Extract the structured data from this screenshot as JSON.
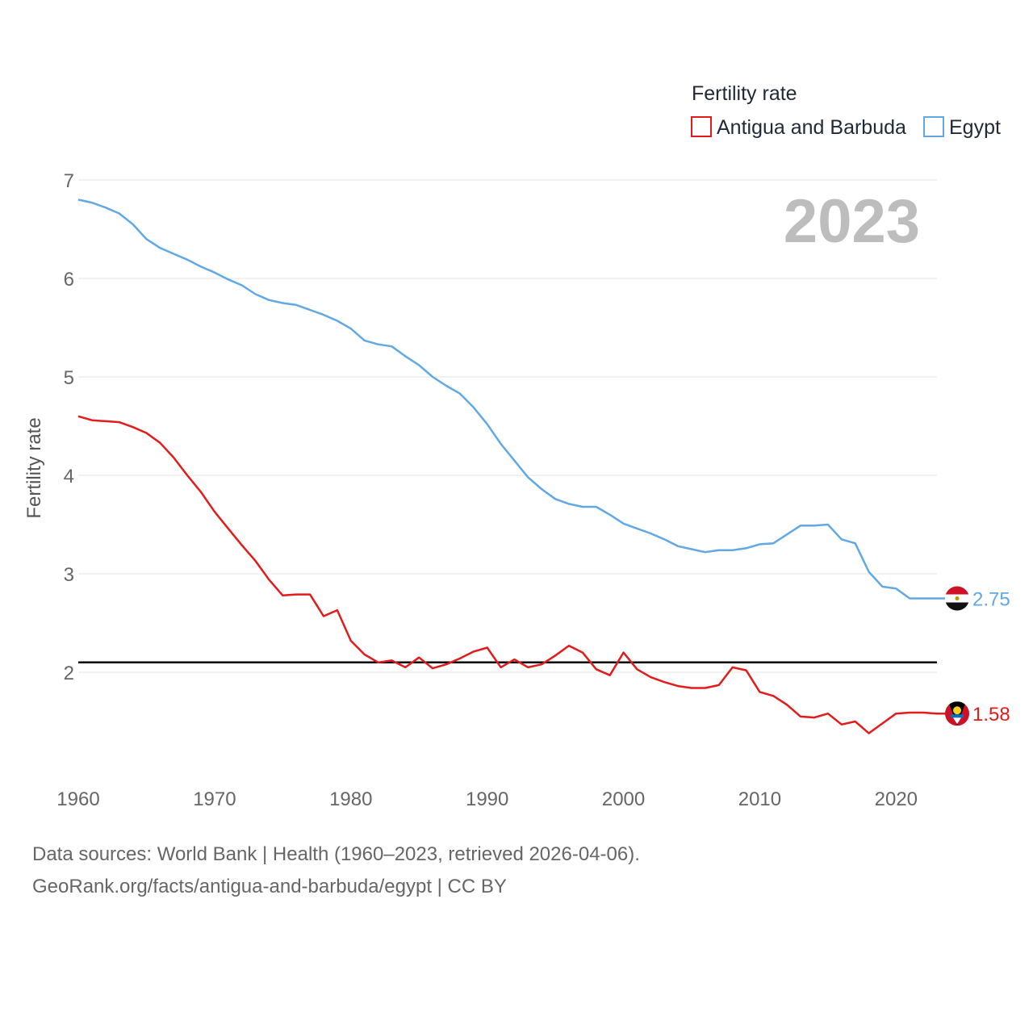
{
  "chart_data": {
    "type": "line",
    "title": "Fertility rate",
    "ylabel": "Fertility rate",
    "xlabel": "",
    "year_label": "2023",
    "xlim": [
      1960,
      2023
    ],
    "ylim": [
      1.05,
      7.1
    ],
    "yticks": [
      2,
      3,
      4,
      5,
      6,
      7
    ],
    "xticks": [
      1960,
      1970,
      1980,
      1990,
      2000,
      2010,
      2020
    ],
    "reference_line": 2.1,
    "x": [
      1960,
      1961,
      1962,
      1963,
      1964,
      1965,
      1966,
      1967,
      1968,
      1969,
      1970,
      1971,
      1972,
      1973,
      1974,
      1975,
      1976,
      1977,
      1978,
      1979,
      1980,
      1981,
      1982,
      1983,
      1984,
      1985,
      1986,
      1987,
      1988,
      1989,
      1990,
      1991,
      1992,
      1993,
      1994,
      1995,
      1996,
      1997,
      1998,
      1999,
      2000,
      2001,
      2002,
      2003,
      2004,
      2005,
      2006,
      2007,
      2008,
      2009,
      2010,
      2011,
      2012,
      2013,
      2014,
      2015,
      2016,
      2017,
      2018,
      2019,
      2020,
      2021,
      2022,
      2023
    ],
    "series": [
      {
        "name": "Antigua and Barbuda",
        "color": "#e31b1b",
        "end_label": "1.58",
        "flag": "antigua-and-barbuda-flag",
        "values": [
          4.6,
          4.56,
          4.55,
          4.54,
          4.49,
          4.43,
          4.33,
          4.18,
          4.0,
          3.83,
          3.63,
          3.46,
          3.29,
          3.13,
          2.94,
          2.78,
          2.79,
          2.79,
          2.57,
          2.63,
          2.32,
          2.18,
          2.1,
          2.12,
          2.05,
          2.15,
          2.04,
          2.08,
          2.14,
          2.21,
          2.25,
          2.05,
          2.13,
          2.05,
          2.08,
          2.17,
          2.27,
          2.2,
          2.03,
          1.97,
          2.2,
          2.03,
          1.95,
          1.9,
          1.86,
          1.84,
          1.84,
          1.87,
          2.05,
          2.02,
          1.8,
          1.76,
          1.67,
          1.55,
          1.54,
          1.58,
          1.47,
          1.5,
          1.38,
          1.48,
          1.58,
          1.59,
          1.59,
          1.58
        ]
      },
      {
        "name": "Egypt",
        "color": "#62a8e5",
        "end_label": "2.75",
        "flag": "egypt-flag",
        "values": [
          6.8,
          6.77,
          6.72,
          6.66,
          6.55,
          6.4,
          6.31,
          6.25,
          6.19,
          6.12,
          6.06,
          5.99,
          5.93,
          5.84,
          5.78,
          5.75,
          5.73,
          5.68,
          5.63,
          5.57,
          5.49,
          5.37,
          5.33,
          5.31,
          5.21,
          5.12,
          5.0,
          4.91,
          4.83,
          4.69,
          4.52,
          4.32,
          4.15,
          3.98,
          3.86,
          3.76,
          3.71,
          3.68,
          3.68,
          3.6,
          3.51,
          3.46,
          3.41,
          3.35,
          3.28,
          3.25,
          3.22,
          3.24,
          3.24,
          3.26,
          3.3,
          3.31,
          3.4,
          3.49,
          3.49,
          3.5,
          3.35,
          3.31,
          3.02,
          2.87,
          2.85,
          2.75,
          2.75,
          2.75
        ]
      }
    ]
  },
  "footer": {
    "line1": "Data sources: World Bank | Health (1960–2023, retrieved 2026-04-06).",
    "line2": "GeoRank.org/facts/antigua-and-barbuda/egypt | CC BY"
  }
}
